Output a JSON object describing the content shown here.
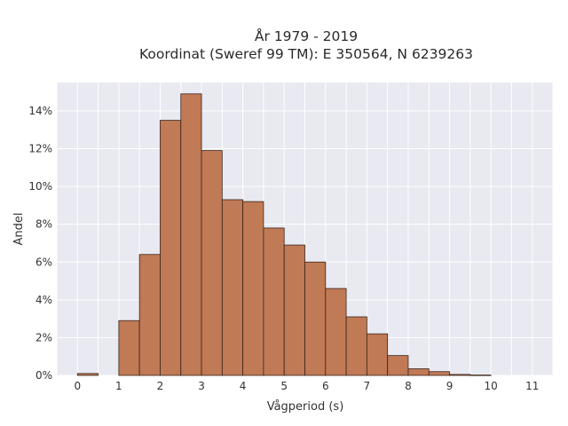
{
  "chart_data": {
    "type": "bar",
    "title": "År 1979 - 2019",
    "subtitle": "Koordinat (Sweref 99 TM): E 350564, N 6239263",
    "xlabel": "Vågperiod (s)",
    "ylabel": "Andel",
    "bin_width": 0.5,
    "bins": [
      {
        "x0": 0.0,
        "x1": 0.5,
        "value": 0.1
      },
      {
        "x0": 1.0,
        "x1": 1.5,
        "value": 2.9
      },
      {
        "x0": 1.5,
        "x1": 2.0,
        "value": 6.4
      },
      {
        "x0": 2.0,
        "x1": 2.5,
        "value": 13.5
      },
      {
        "x0": 2.5,
        "x1": 3.0,
        "value": 14.9
      },
      {
        "x0": 3.0,
        "x1": 3.5,
        "value": 11.9
      },
      {
        "x0": 3.5,
        "x1": 4.0,
        "value": 9.3
      },
      {
        "x0": 4.0,
        "x1": 4.5,
        "value": 9.2
      },
      {
        "x0": 4.5,
        "x1": 5.0,
        "value": 7.8
      },
      {
        "x0": 5.0,
        "x1": 5.5,
        "value": 6.9
      },
      {
        "x0": 5.5,
        "x1": 6.0,
        "value": 6.0
      },
      {
        "x0": 6.0,
        "x1": 6.5,
        "value": 4.6
      },
      {
        "x0": 6.5,
        "x1": 7.0,
        "value": 3.1
      },
      {
        "x0": 7.0,
        "x1": 7.5,
        "value": 2.2
      },
      {
        "x0": 7.5,
        "x1": 8.0,
        "value": 1.05
      },
      {
        "x0": 8.0,
        "x1": 8.5,
        "value": 0.35
      },
      {
        "x0": 8.5,
        "x1": 9.0,
        "value": 0.2
      },
      {
        "x0": 9.0,
        "x1": 9.5,
        "value": 0.05
      },
      {
        "x0": 9.5,
        "x1": 10.0,
        "value": 0.02
      }
    ],
    "xlim": [
      -0.5,
      11.5
    ],
    "ylim": [
      0,
      15.5
    ],
    "x_ticks": [
      0,
      1,
      2,
      3,
      4,
      5,
      6,
      7,
      8,
      9,
      10,
      11
    ],
    "y_ticks": [
      0,
      2,
      4,
      6,
      8,
      10,
      12,
      14
    ],
    "y_tick_suffix": "%",
    "bar_color": "#c07a55",
    "plot_background": "#e8e9f1",
    "grid": true
  }
}
